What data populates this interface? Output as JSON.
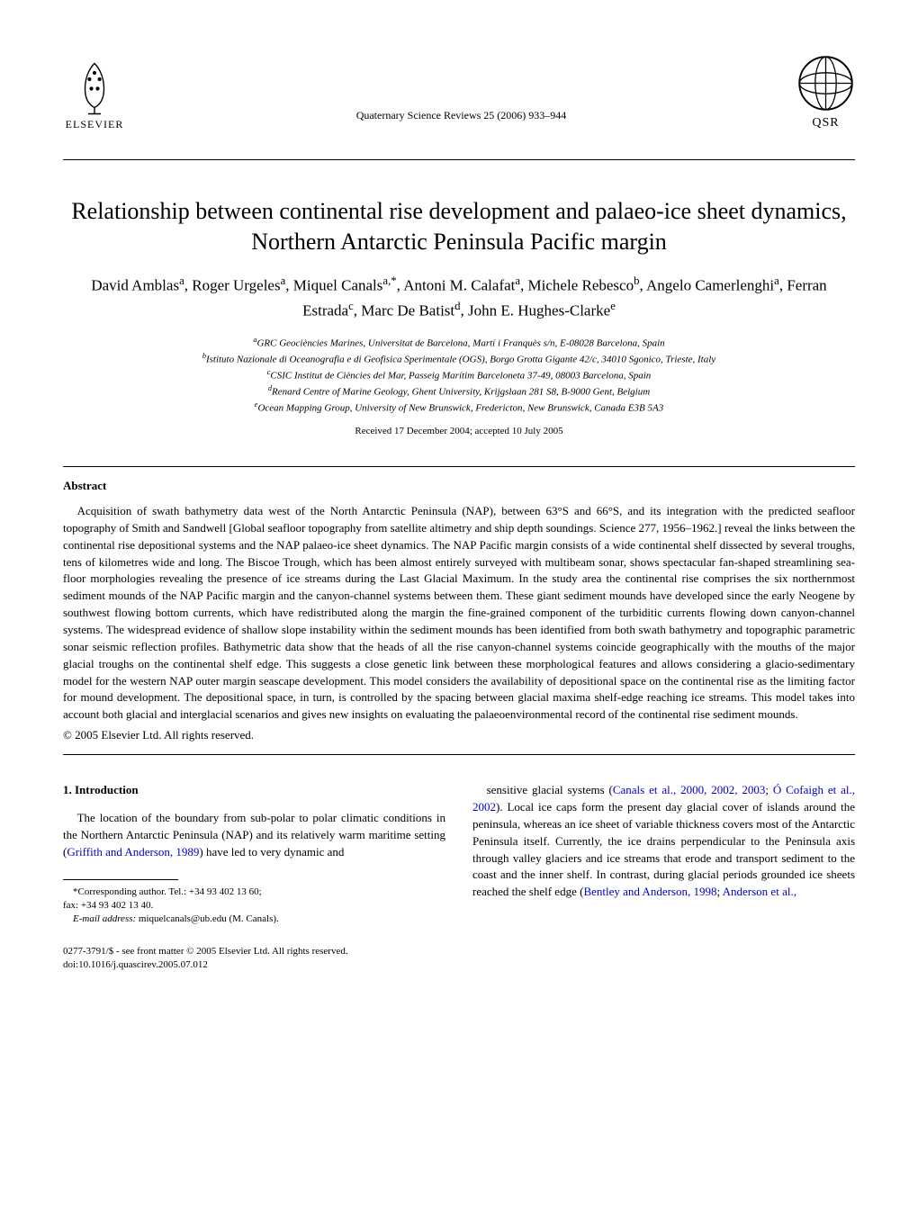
{
  "header": {
    "publisher_name": "ELSEVIER",
    "journal_reference": "Quaternary Science Reviews 25 (2006) 933–944",
    "journal_abbrev": "QSR"
  },
  "title": "Relationship between continental rise development and palaeo-ice sheet dynamics, Northern Antarctic Peninsula Pacific margin",
  "authors_html": "David Amblas<sup>a</sup>, Roger Urgeles<sup>a</sup>, Miquel Canals<sup>a,*</sup>, Antoni M. Calafat<sup>a</sup>, Michele Rebesco<sup>b</sup>, Angelo Camerlenghi<sup>a</sup>, Ferran Estrada<sup>c</sup>, Marc De Batist<sup>d</sup>, John E. Hughes-Clarke<sup>e</sup>",
  "affiliations_html": "<sup>a</sup>GRC Geociències Marines, Universitat de Barcelona, Martí i Franquès s/n, E-08028 Barcelona, Spain<br><sup>b</sup>Istituto Nazionale di Oceanografia e di Geofisica Sperimentale (OGS), Borgo Grotta Gigante 42/c, 34010 Sgonico, Trieste, Italy<br><sup>c</sup>CSIC Institut de Ciències del Mar, Passeig Marítim Barceloneta 37-49, 08003 Barcelona, Spain<br><sup>d</sup>Renard Centre of Marine Geology, Ghent University, Krijgslaan 281 S8, B-9000 Gent, Belgium<br><sup>e</sup>Ocean Mapping Group, University of New Brunswick, Fredericton, New Brunswick, Canada E3B 5A3",
  "received": "Received 17 December 2004; accepted 10 July 2005",
  "abstract": {
    "heading": "Abstract",
    "body": "Acquisition of swath bathymetry data west of the North Antarctic Peninsula (NAP), between 63°S and 66°S, and its integration with the predicted seafloor topography of Smith and Sandwell [Global seafloor topography from satellite altimetry and ship depth soundings. Science 277, 1956–1962.] reveal the links between the continental rise depositional systems and the NAP palaeo-ice sheet dynamics. The NAP Pacific margin consists of a wide continental shelf dissected by several troughs, tens of kilometres wide and long. The Biscoe Trough, which has been almost entirely surveyed with multibeam sonar, shows spectacular fan-shaped streamlining sea-floor morphologies revealing the presence of ice streams during the Last Glacial Maximum. In the study area the continental rise comprises the six northernmost sediment mounds of the NAP Pacific margin and the canyon-channel systems between them. These giant sediment mounds have developed since the early Neogene by southwest flowing bottom currents, which have redistributed along the margin the fine-grained component of the turbiditic currents flowing down canyon-channel systems. The widespread evidence of shallow slope instability within the sediment mounds has been identified from both swath bathymetry and topographic parametric sonar seismic reflection profiles. Bathymetric data show that the heads of all the rise canyon-channel systems coincide geographically with the mouths of the major glacial troughs on the continental shelf edge. This suggests a close genetic link between these morphological features and allows considering a glacio-sedimentary model for the western NAP outer margin seascape development. This model considers the availability of depositional space on the continental rise as the limiting factor for mound development. The depositional space, in turn, is controlled by the spacing between glacial maxima shelf-edge reaching ice streams. This model takes into account both glacial and interglacial scenarios and gives new insights on evaluating the palaeoenvironmental record of the continental rise sediment mounds.",
    "copyright": "© 2005 Elsevier Ltd. All rights reserved."
  },
  "intro": {
    "heading": "1.  Introduction",
    "col1_html": "The location of the boundary from sub-polar to polar climatic conditions in the Northern Antarctic Peninsula (NAP) and its relatively warm maritime setting (<span class=\"cite-link\">Griffith and Anderson, 1989</span>) have led to very dynamic and",
    "col2_html": "sensitive glacial systems (<span class=\"cite-link\">Canals et al., 2000, 2002, 2003</span>; <span class=\"cite-link\">Ó Cofaigh et al., 2002</span>). Local ice caps form the present day glacial cover of islands around the peninsula, whereas an ice sheet of variable thickness covers most of the Antarctic Peninsula itself. Currently, the ice drains perpendicular to the Peninsula axis through valley glaciers and ice streams that erode and transport sediment to the coast and the inner shelf. In contrast, during glacial periods grounded ice sheets reached the shelf edge (<span class=\"cite-link\">Bentley and Anderson, 1998</span>; <span class=\"cite-link\">Anderson et al.,</span>"
  },
  "footnote": {
    "corresponding": "*Corresponding author. Tel.: +34 93 402 13 60;",
    "fax": "fax: +34 93 402 13 40.",
    "email_label": "E-mail address:",
    "email": "miquelcanals@ub.edu (M. Canals)."
  },
  "footer": {
    "front_matter": "0277-3791/$ - see front matter © 2005 Elsevier Ltd. All rights reserved.",
    "doi": "doi:10.1016/j.quascirev.2005.07.012"
  }
}
